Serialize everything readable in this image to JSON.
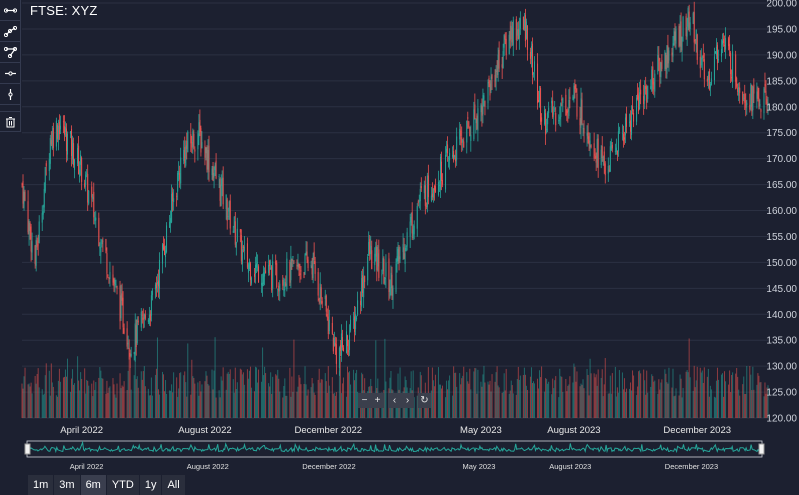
{
  "title": "FTSE: XYZ",
  "toolbar": {
    "tools": [
      "line-segment-icon",
      "ray-icon",
      "path-icon",
      "horizontal-line-icon",
      "vertical-line-icon"
    ],
    "delete": "trash-icon"
  },
  "y_axis": {
    "ticks": [
      "200.00",
      "195.00",
      "190.00",
      "185.00",
      "180.00",
      "175.00",
      "170.00",
      "165.00",
      "160.00",
      "155.00",
      "150.00",
      "145.00",
      "140.00",
      "135.00",
      "130.00",
      "125.00",
      "120.00"
    ]
  },
  "x_axis": {
    "labels": [
      "April 2022",
      "August 2022",
      "December 2022",
      "May 2023",
      "August 2023",
      "December 2023"
    ]
  },
  "navigator": {
    "labels": [
      "April 2022",
      "August 2022",
      "December 2022",
      "May 2023",
      "August 2023",
      "December 2023"
    ]
  },
  "nav_controls": {
    "zoom_out": "−",
    "zoom_in": "+",
    "prev": "‹",
    "next": "›",
    "reset": "↻"
  },
  "ranges": [
    "1m",
    "3m",
    "6m",
    "YTD",
    "1y",
    "All"
  ],
  "selected_range": "6m",
  "colors": {
    "up": "#26a69a",
    "down": "#ef5350",
    "navigator": "#26a69a",
    "grid": "#2b3042"
  },
  "chart_data": {
    "type": "candlestick",
    "title": "FTSE: XYZ",
    "x_range": [
      "2022-02",
      "2024-02"
    ],
    "ylim": [
      120,
      200
    ],
    "close_anchors": [
      [
        "2022-02-01",
        165
      ],
      [
        "2022-02-14",
        150
      ],
      [
        "2022-03-01",
        174
      ],
      [
        "2022-03-10",
        177
      ],
      [
        "2022-04-01",
        168
      ],
      [
        "2022-05-01",
        147
      ],
      [
        "2022-05-20",
        134
      ],
      [
        "2022-06-10",
        142
      ],
      [
        "2022-07-10",
        171
      ],
      [
        "2022-07-25",
        175
      ],
      [
        "2022-08-15",
        165
      ],
      [
        "2022-09-10",
        150
      ],
      [
        "2022-10-10",
        147
      ],
      [
        "2022-11-15",
        150
      ],
      [
        "2022-12-10",
        132
      ],
      [
        "2022-12-25",
        137
      ],
      [
        "2023-01-10",
        152
      ],
      [
        "2023-02-01",
        146
      ],
      [
        "2023-03-01",
        162
      ],
      [
        "2023-04-01",
        170
      ],
      [
        "2023-05-01",
        180
      ],
      [
        "2023-06-01",
        195
      ],
      [
        "2023-06-15",
        195
      ],
      [
        "2023-07-01",
        177
      ],
      [
        "2023-08-01",
        182
      ],
      [
        "2023-09-01",
        168
      ],
      [
        "2023-10-01",
        180
      ],
      [
        "2023-11-10",
        193
      ],
      [
        "2023-11-25",
        197
      ],
      [
        "2023-12-10",
        184
      ],
      [
        "2023-12-25",
        193
      ],
      [
        "2024-01-15",
        183
      ],
      [
        "2024-02-01",
        181
      ]
    ]
  }
}
